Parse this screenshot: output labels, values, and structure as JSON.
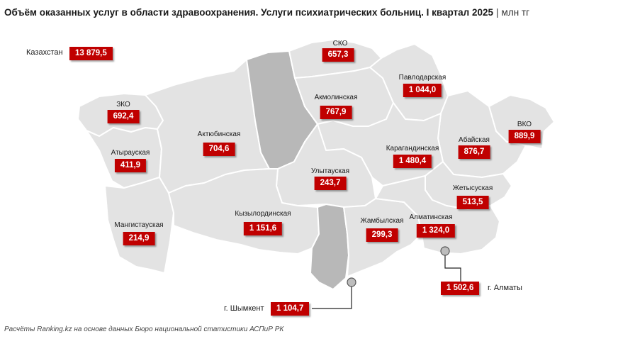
{
  "title": {
    "main": "Объём оказанных услуг в области здравоохранения. Услуги психиатрических больниц. I квартал 2025",
    "separator": "|",
    "unit": "млн тг"
  },
  "source": "Расчёты Ranking.kz на основе данных Бюро национальной статистики АСПиР РК",
  "total": {
    "label": "Казахстан",
    "value": "13 879,5"
  },
  "regions": {
    "sko": {
      "label": "СКО",
      "value": "657,3"
    },
    "pavlodar": {
      "label": "Павлодарская",
      "value": "1 044,0"
    },
    "akmola": {
      "label": "Акмолинская",
      "value": "767,9"
    },
    "zko": {
      "label": "ЗКО",
      "value": "692,4"
    },
    "vko": {
      "label": "ВКО",
      "value": "889,9"
    },
    "aktobe": {
      "label": "Актюбинская",
      "value": "704,6"
    },
    "abay": {
      "label": "Абайская",
      "value": "876,7"
    },
    "karaganda": {
      "label": "Карагандинская",
      "value": "1 480,4"
    },
    "atyrau": {
      "label": "Атырауская",
      "value": "411,9"
    },
    "ulytau": {
      "label": "Улытауская",
      "value": "243,7"
    },
    "zhetysu": {
      "label": "Жетысуская",
      "value": "513,5"
    },
    "mangystau": {
      "label": "Мангистауская",
      "value": "214,9"
    },
    "kyzylorda": {
      "label": "Кызылординская",
      "value": "1 151,6"
    },
    "zhambyl": {
      "label": "Жамбылская",
      "value": "299,3"
    },
    "almaty_region": {
      "label": "Алматинская",
      "value": "1 324,0"
    },
    "almaty_city": {
      "label": "г. Алматы",
      "value": "1 502,6"
    },
    "shymkent": {
      "label": "г. Шымкент",
      "value": "1 104,7"
    }
  },
  "colors": {
    "value_box": "#c00000",
    "region_fill": "#e3e3e3",
    "no_data_region_fill": "#b8b8b8",
    "border": "#ffffff"
  }
}
